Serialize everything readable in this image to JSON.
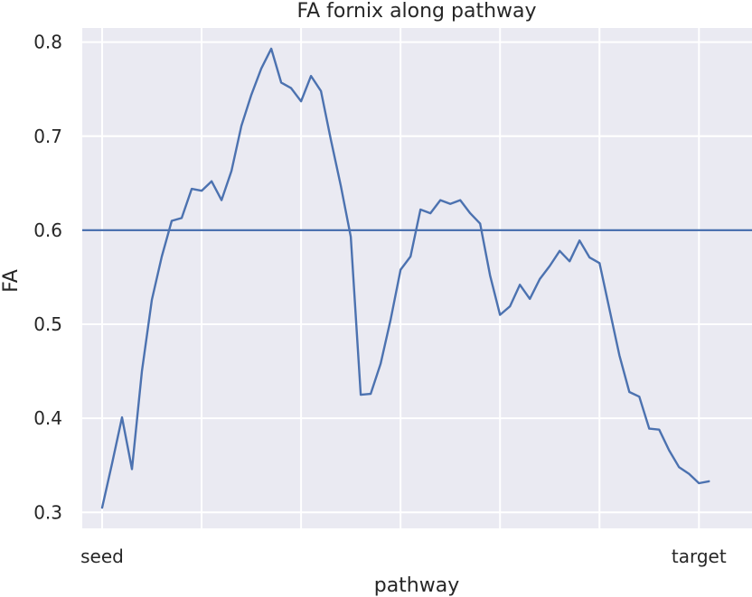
{
  "chart_data": {
    "type": "line",
    "title": "FA fornix along pathway",
    "xlabel": "pathway",
    "ylabel": "FA",
    "xlim": [
      -3,
      98
    ],
    "ylim": [
      0.283,
      0.815
    ],
    "yticks": [
      0.3,
      0.4,
      0.5,
      0.6,
      0.7,
      0.8
    ],
    "ytick_labels": [
      "0.3",
      "0.4",
      "0.5",
      "0.6",
      "0.7",
      "0.8"
    ],
    "xgrid": [
      0,
      15,
      30,
      45,
      60,
      75,
      90
    ],
    "xtick_labels": [
      {
        "x": 0,
        "label": "seed"
      },
      {
        "x": 90,
        "label": "target"
      }
    ],
    "grid": true,
    "reference_line": {
      "y": 0.6,
      "color": "#4c72b0"
    },
    "series": [
      {
        "color": "#4c72b0",
        "x": [
          0,
          1.5,
          3,
          4.5,
          6,
          7.5,
          9,
          10.5,
          12,
          13.5,
          15,
          16.5,
          18,
          19.5,
          21,
          22.5,
          24,
          25.5,
          27,
          28.5,
          30,
          31.5,
          33,
          34.5,
          36,
          37.5,
          39,
          40.5,
          42,
          43.5,
          45,
          46.5,
          48,
          49.5,
          51,
          52.5,
          54,
          55.5,
          57,
          58.5,
          60,
          61.5,
          63,
          64.5,
          66,
          67.5,
          69,
          70.5,
          72,
          73.5,
          75,
          76.5,
          78,
          79.5,
          81,
          82.5,
          84,
          85.5,
          87,
          88.5,
          90,
          91.5
        ],
        "y": [
          0.305,
          0.352,
          0.401,
          0.346,
          0.45,
          0.526,
          0.572,
          0.61,
          0.613,
          0.644,
          0.642,
          0.652,
          0.632,
          0.663,
          0.711,
          0.744,
          0.772,
          0.793,
          0.757,
          0.751,
          0.737,
          0.764,
          0.748,
          0.696,
          0.647,
          0.593,
          0.425,
          0.426,
          0.458,
          0.505,
          0.558,
          0.572,
          0.622,
          0.618,
          0.632,
          0.628,
          0.632,
          0.618,
          0.607,
          0.552,
          0.51,
          0.519,
          0.542,
          0.527,
          0.548,
          0.562,
          0.578,
          0.567,
          0.589,
          0.571,
          0.565,
          0.516,
          0.467,
          0.428,
          0.423,
          0.389,
          0.388,
          0.366,
          0.348,
          0.341,
          0.331,
          0.333
        ]
      }
    ]
  }
}
